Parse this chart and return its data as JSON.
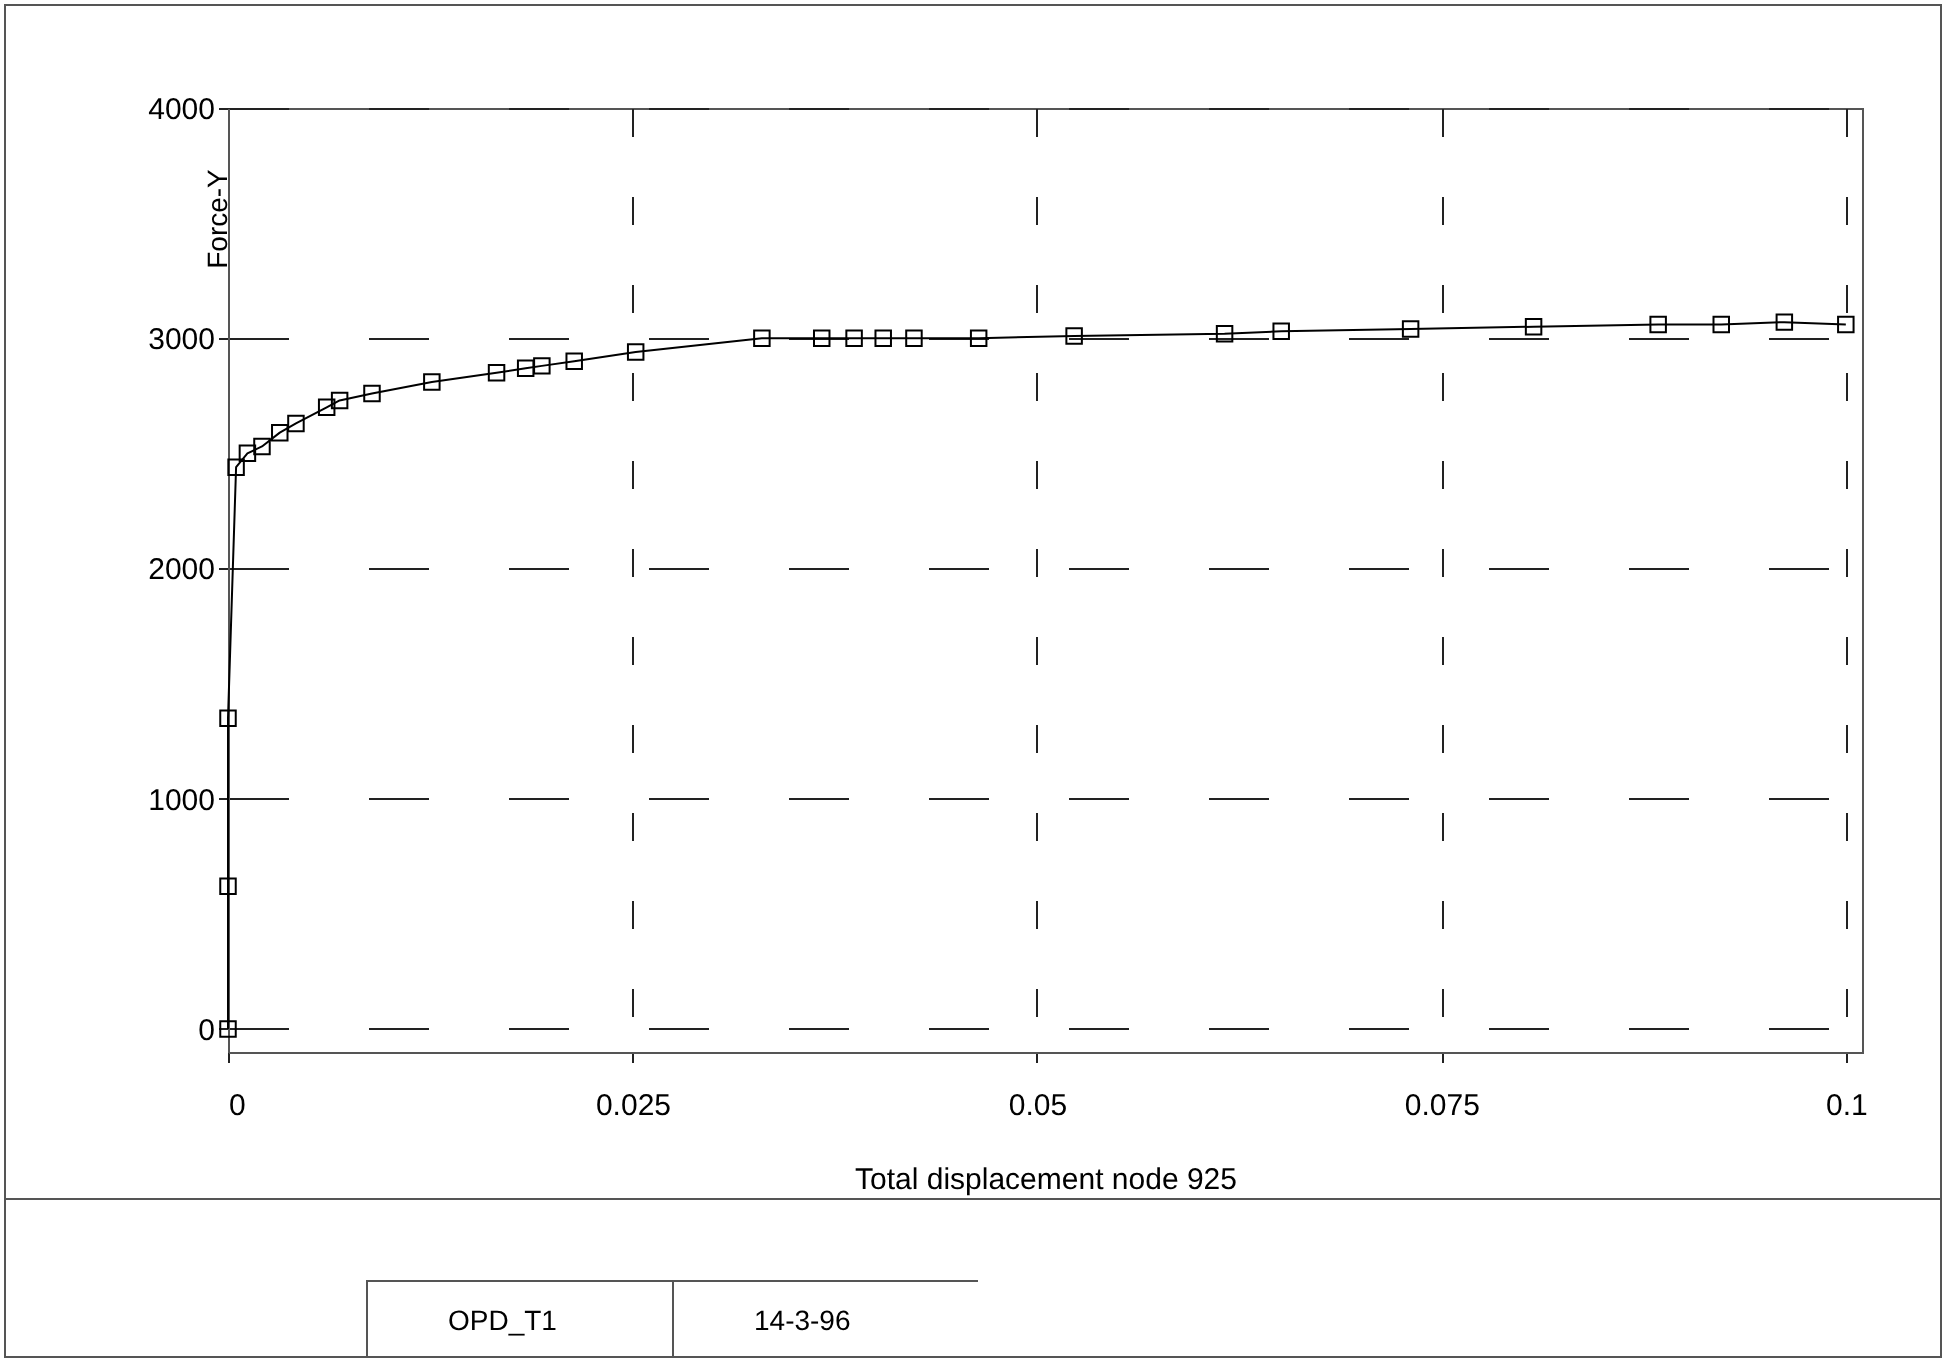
{
  "chart_data": {
    "type": "line",
    "xlabel": "Total displacement node 925",
    "ylabel": "Force-Y",
    "x": [
      0,
      0,
      0,
      0.0005,
      0.0012,
      0.0021,
      0.0032,
      0.0042,
      0.0061,
      0.0069,
      0.0089,
      0.0126,
      0.0166,
      0.0184,
      0.0194,
      0.0214,
      0.0252,
      0.033,
      0.0367,
      0.0387,
      0.0405,
      0.0424,
      0.0464,
      0.0523,
      0.0616,
      0.0651,
      0.0731,
      0.0807,
      0.0884,
      0.0923,
      0.0962,
      0.1
    ],
    "series": [
      {
        "color": "#000000",
        "values": [
          0,
          620,
          1350,
          2440,
          2500,
          2530,
          2590,
          2630,
          2700,
          2730,
          2760,
          2810,
          2850,
          2870,
          2880,
          2900,
          2940,
          3000,
          3000,
          3000,
          3000,
          3000,
          3000,
          3010,
          3020,
          3030,
          3040,
          3050,
          3060,
          3060,
          3070,
          3060
        ]
      }
    ],
    "xlim": [
      0,
      0.101
    ],
    "xticks": [
      0,
      0.025,
      0.05,
      0.075,
      0.1
    ],
    "ylim": [
      -100,
      4000
    ],
    "yticks": [
      0,
      1000,
      2000,
      3000,
      4000
    ],
    "grid": true,
    "marker": "square",
    "line_style": "solid",
    "annotations": [
      "OPD_T1",
      "14-3-96"
    ]
  }
}
